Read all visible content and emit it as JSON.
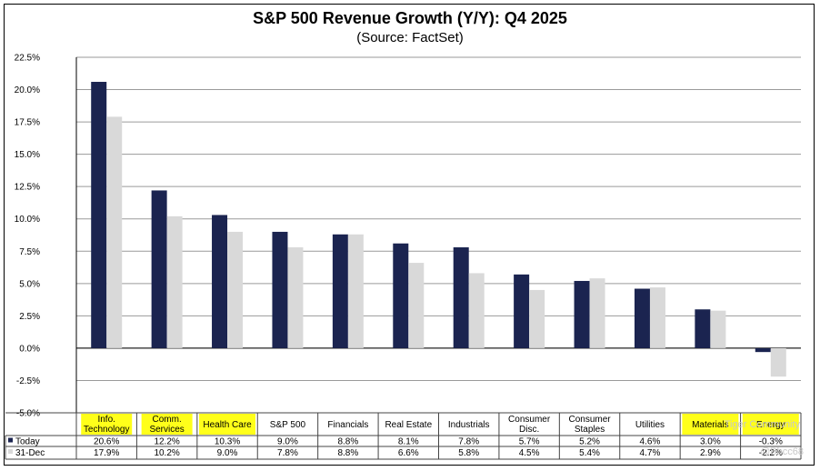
{
  "chart_data": {
    "type": "bar",
    "title": "S&P 500 Revenue Growth (Y/Y): Q4 2025",
    "subtitle": "(Source: FactSet)",
    "xlabel": "",
    "ylabel": "",
    "ylim": [
      -5.0,
      22.5
    ],
    "y_ticks": [
      "22.5%",
      "20.0%",
      "17.5%",
      "15.0%",
      "12.5%",
      "10.0%",
      "7.5%",
      "5.0%",
      "2.5%",
      "0.0%",
      "-2.5%",
      "-5.0%"
    ],
    "categories": [
      "Info. Technology",
      "Comm. Services",
      "Health Care",
      "S&P 500",
      "Financials",
      "Real Estate",
      "Industrials",
      "Consumer Disc.",
      "Consumer Staples",
      "Utilities",
      "Materials",
      "Energy"
    ],
    "category_lines": [
      [
        "Info.",
        "Technology"
      ],
      [
        "Comm.",
        "Services"
      ],
      [
        "Health Care"
      ],
      [
        "S&P 500"
      ],
      [
        "Financials"
      ],
      [
        "Real Estate"
      ],
      [
        "Industrials"
      ],
      [
        "Consumer",
        "Disc."
      ],
      [
        "Consumer",
        "Staples"
      ],
      [
        "Utilities"
      ],
      [
        "Materials"
      ],
      [
        "Energy"
      ]
    ],
    "highlighted": [
      true,
      true,
      true,
      false,
      false,
      false,
      false,
      false,
      false,
      false,
      true,
      true
    ],
    "series": [
      {
        "name": "Today",
        "color": "#1b2450",
        "values": [
          20.6,
          12.2,
          10.3,
          9.0,
          8.8,
          8.1,
          7.8,
          5.7,
          5.2,
          4.6,
          3.0,
          -0.3
        ],
        "labels": [
          "20.6%",
          "12.2%",
          "10.3%",
          "9.0%",
          "8.8%",
          "8.1%",
          "7.8%",
          "5.7%",
          "5.2%",
          "4.6%",
          "3.0%",
          "-0.3%"
        ]
      },
      {
        "name": "31-Dec",
        "color": "#d9d9d9",
        "values": [
          17.9,
          10.2,
          9.0,
          7.8,
          8.8,
          6.6,
          5.8,
          4.5,
          5.4,
          4.7,
          2.9,
          -2.2
        ],
        "labels": [
          "17.9%",
          "10.2%",
          "9.0%",
          "7.8%",
          "8.8%",
          "6.6%",
          "5.8%",
          "4.5%",
          "5.4%",
          "4.7%",
          "2.9%",
          "-2.2%"
        ]
      }
    ],
    "grid": true,
    "legend": "data-table-left"
  },
  "watermark": {
    "line1": "Tiger Community",
    "line2": "@Bbcc68"
  }
}
